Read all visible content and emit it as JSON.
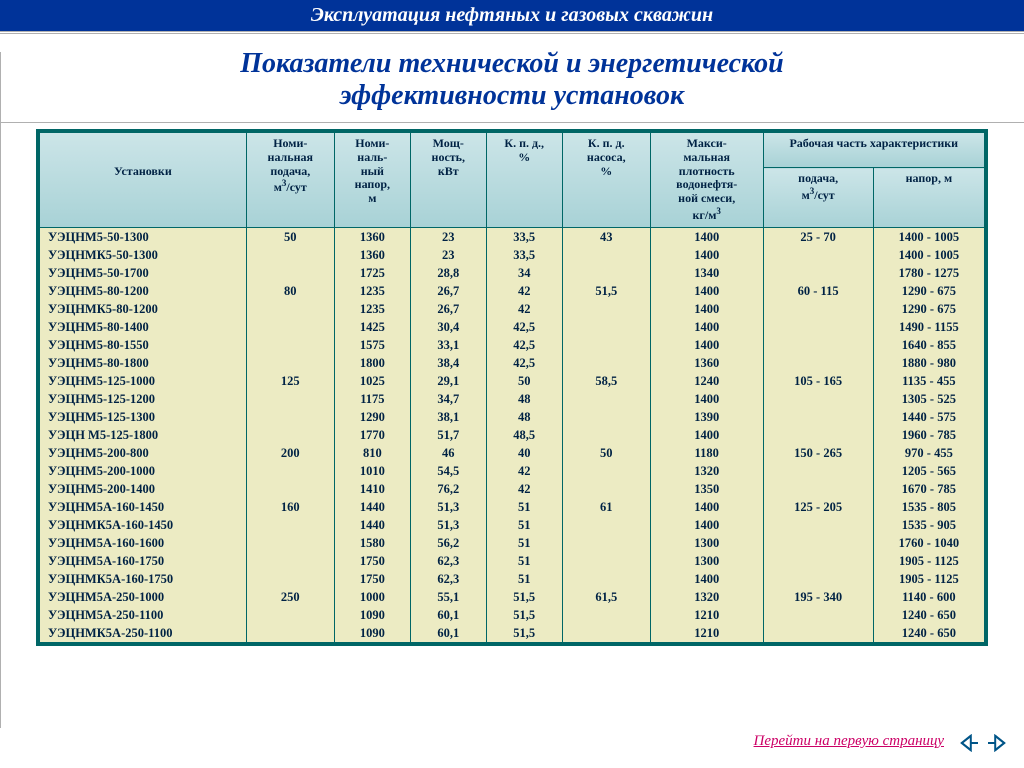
{
  "header": {
    "title": "Эксплуатация нефтяных и газовых скважин"
  },
  "title": {
    "line1": "Показатели технической и энергетической",
    "line2": "эффективности установок"
  },
  "table": {
    "columns": {
      "c0": "Установки",
      "c1": "Номи-нальная подача, м³/сут",
      "c2": "Номи-наль-ный напор, м",
      "c3": "Мощ-ность, кВт",
      "c4": "К. п. д., %",
      "c5": "К. п. д. насоса, %",
      "c6": "Макси-мальная плотность водонефтя-ной смеси, кг/м³",
      "c7": "Рабочая часть характеристики",
      "c7a": "подача, м³/сут",
      "c7b": "напор, м"
    },
    "rows": [
      {
        "n": "УЭЦНМ5-50-1300",
        "p": "50",
        "h": "1360",
        "w": "23",
        "e": "33,5",
        "ep": "43",
        "d": "1400",
        "rp": "25 - 70",
        "rh": "1400 - 1005"
      },
      {
        "n": "УЭЦНМК5-50-1300",
        "p": "",
        "h": "1360",
        "w": "23",
        "e": "33,5",
        "ep": "",
        "d": "1400",
        "rp": "",
        "rh": "1400 - 1005"
      },
      {
        "n": "УЭЦНМ5-50-1700",
        "p": "",
        "h": "1725",
        "w": "28,8",
        "e": "34",
        "ep": "",
        "d": "1340",
        "rp": "",
        "rh": "1780 - 1275"
      },
      {
        "n": "УЭЦНМ5-80-1200",
        "p": "80",
        "h": "1235",
        "w": "26,7",
        "e": "42",
        "ep": "51,5",
        "d": "1400",
        "rp": "60 - 115",
        "rh": "1290 - 675"
      },
      {
        "n": "УЭЦНМК5-80-1200",
        "p": "",
        "h": "1235",
        "w": "26,7",
        "e": "42",
        "ep": "",
        "d": "1400",
        "rp": "",
        "rh": "1290 - 675"
      },
      {
        "n": "УЭЦНМ5-80-1400",
        "p": "",
        "h": "1425",
        "w": "30,4",
        "e": "42,5",
        "ep": "",
        "d": "1400",
        "rp": "",
        "rh": "1490 - 1155"
      },
      {
        "n": "УЭЦНМ5-80-1550",
        "p": "",
        "h": "1575",
        "w": "33,1",
        "e": "42,5",
        "ep": "",
        "d": "1400",
        "rp": "",
        "rh": "1640 - 855"
      },
      {
        "n": "УЭЦНМ5-80-1800",
        "p": "",
        "h": "1800",
        "w": "38,4",
        "e": "42,5",
        "ep": "",
        "d": "1360",
        "rp": "",
        "rh": "1880 - 980"
      },
      {
        "n": "УЭЦНМ5-125-1000",
        "p": "125",
        "h": "1025",
        "w": "29,1",
        "e": "50",
        "ep": "58,5",
        "d": "1240",
        "rp": "105 - 165",
        "rh": "1135 - 455"
      },
      {
        "n": "УЭЦНМ5-125-1200",
        "p": "",
        "h": "1175",
        "w": "34,7",
        "e": "48",
        "ep": "",
        "d": "1400",
        "rp": "",
        "rh": "1305 - 525"
      },
      {
        "n": "УЭЦНМ5-125-1300",
        "p": "",
        "h": "1290",
        "w": "38,1",
        "e": "48",
        "ep": "",
        "d": "1390",
        "rp": "",
        "rh": "1440 - 575"
      },
      {
        "n": "УЭЦН М5-125-1800",
        "p": "",
        "h": "1770",
        "w": "51,7",
        "e": "48,5",
        "ep": "",
        "d": "1400",
        "rp": "",
        "rh": "1960 - 785"
      },
      {
        "n": "УЭЦНМ5-200-800",
        "p": "200",
        "h": "810",
        "w": "46",
        "e": "40",
        "ep": "50",
        "d": "1180",
        "rp": "150 - 265",
        "rh": "970 - 455"
      },
      {
        "n": "УЭЦНМ5-200-1000",
        "p": "",
        "h": "1010",
        "w": "54,5",
        "e": "42",
        "ep": "",
        "d": "1320",
        "rp": "",
        "rh": "1205 - 565"
      },
      {
        "n": "УЭЦНМ5-200-1400",
        "p": "",
        "h": "1410",
        "w": "76,2",
        "e": "42",
        "ep": "",
        "d": "1350",
        "rp": "",
        "rh": "1670 - 785"
      },
      {
        "n": "УЭЦНМ5А-160-1450",
        "p": "160",
        "h": "1440",
        "w": "51,3",
        "e": "51",
        "ep": "61",
        "d": "1400",
        "rp": "125 - 205",
        "rh": "1535 - 805"
      },
      {
        "n": "УЭЦНМК5А-160-1450",
        "p": "",
        "h": "1440",
        "w": "51,3",
        "e": "51",
        "ep": "",
        "d": "1400",
        "rp": "",
        "rh": "1535 - 905"
      },
      {
        "n": "УЭЦНМ5А-160-1600",
        "p": "",
        "h": "1580",
        "w": "56,2",
        "e": "51",
        "ep": "",
        "d": "1300",
        "rp": "",
        "rh": "1760 - 1040"
      },
      {
        "n": "УЭЦНМ5А-160-1750",
        "p": "",
        "h": "1750",
        "w": "62,3",
        "e": "51",
        "ep": "",
        "d": "1300",
        "rp": "",
        "rh": "1905 - 1125"
      },
      {
        "n": "УЭЦНМК5А-160-1750",
        "p": "",
        "h": "1750",
        "w": "62,3",
        "e": "51",
        "ep": "",
        "d": "1400",
        "rp": "",
        "rh": "1905 - 1125"
      },
      {
        "n": "УЭЦНМ5А-250-1000",
        "p": "250",
        "h": "1000",
        "w": "55,1",
        "e": "51,5",
        "ep": "61,5",
        "d": "1320",
        "rp": "195 - 340",
        "rh": "1140 - 600"
      },
      {
        "n": "УЭЦНМ5А-250-1100",
        "p": "",
        "h": "1090",
        "w": "60,1",
        "e": "51,5",
        "ep": "",
        "d": "1210",
        "rp": "",
        "rh": "1240 - 650"
      },
      {
        "n": "УЭЦНМК5А-250-1100",
        "p": "",
        "h": "1090",
        "w": "60,1",
        "e": "51,5",
        "ep": "",
        "d": "1210",
        "rp": "",
        "rh": "1240 - 650"
      }
    ]
  },
  "footer": {
    "link": "Перейти на первую страницу"
  },
  "style": {
    "header_bg": "#003399",
    "table_border": "#006666",
    "thead_bg_top": "#cce5e8",
    "thead_bg_bot": "#a8d2d6",
    "tbody_bg": "#ecebc3",
    "text_color": "#002244",
    "link_color": "#cc0066",
    "arrow_color": "#005588",
    "col_widths": [
      "170",
      "72",
      "62",
      "62",
      "62",
      "72",
      "92",
      "90",
      "92"
    ]
  }
}
